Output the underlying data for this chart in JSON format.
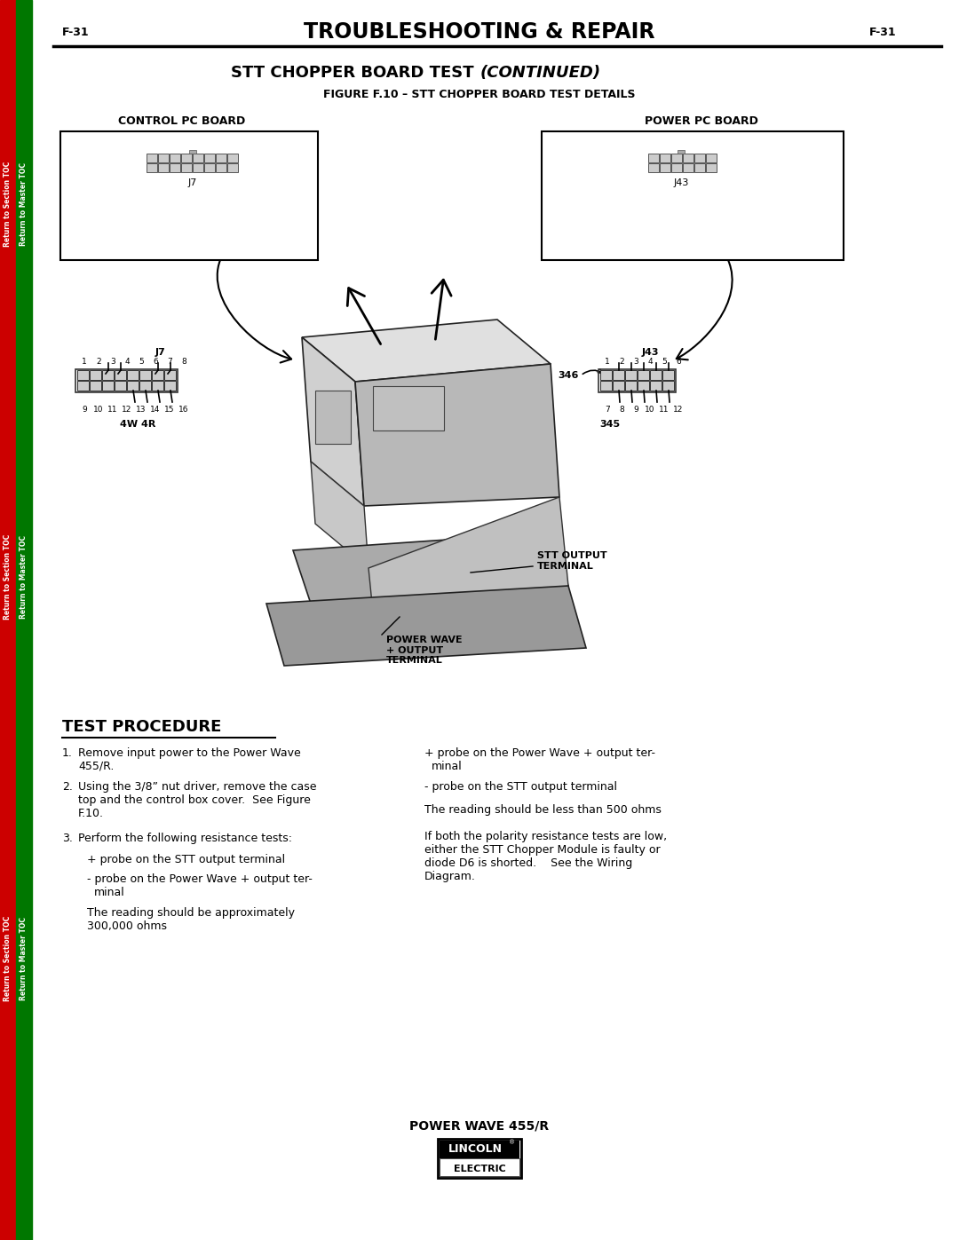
{
  "page_number": "F-31",
  "header_title": "TROUBLESHOOTING & REPAIR",
  "figure_title": "FIGURE F.10 – STT CHOPPER BOARD TEST DETAILS",
  "left_board_label": "CONTROL PC BOARD",
  "right_board_label": "POWER PC BOARD",
  "left_connector_label": "J7",
  "right_connector_label": "J43",
  "left_4w4r": "4W 4R",
  "right_pin_top_prefix": "346",
  "right_345": "345",
  "stt_output_label": "STT OUTPUT\nTERMINAL",
  "power_wave_label": "POWER WAVE\n+ OUTPUT\nTERMINAL",
  "test_procedure_title": "TEST PROCEDURE",
  "footer_text": "POWER WAVE 455/R",
  "sidebar_left_red": "Return to Section TOC",
  "sidebar_left_green": "Return to Master TOC",
  "bg_color": "#ffffff",
  "text_color": "#000000",
  "sidebar_red": "#cc0000",
  "sidebar_green": "#007700"
}
